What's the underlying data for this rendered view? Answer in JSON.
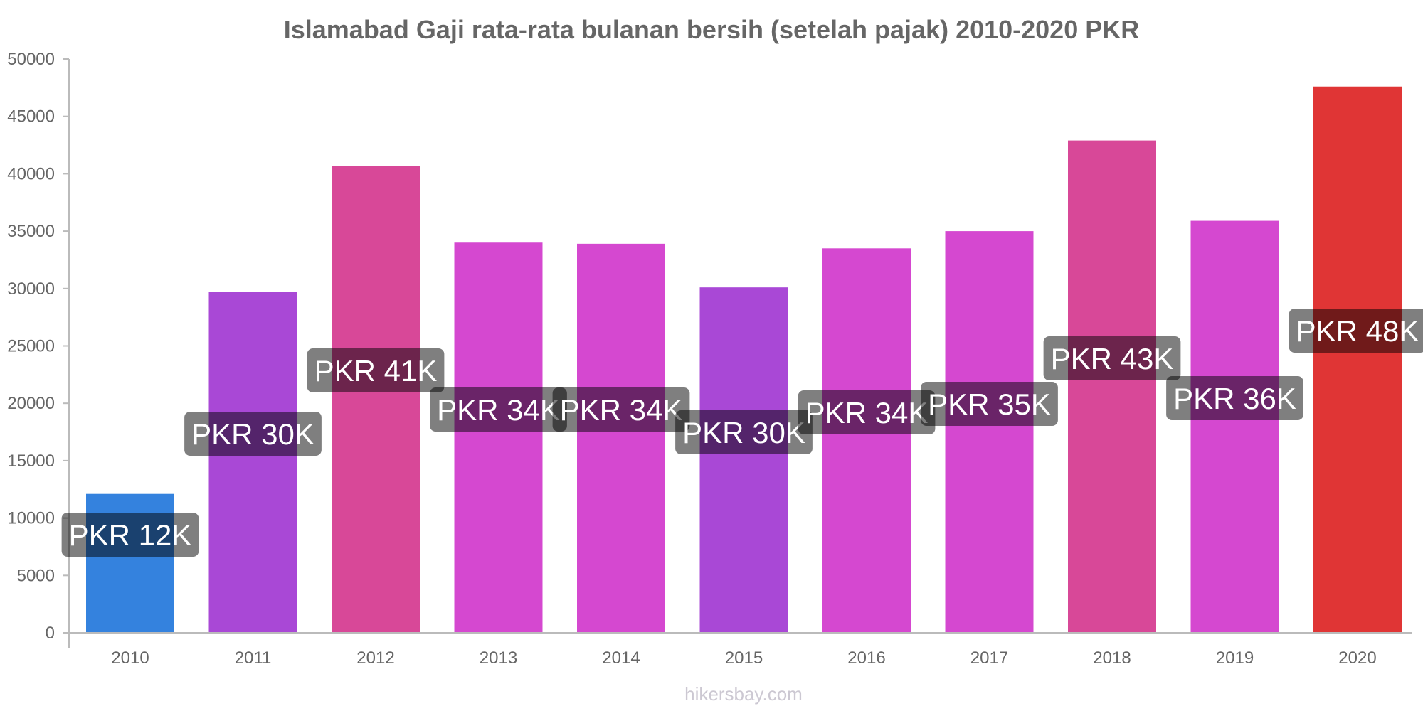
{
  "chart_data": {
    "type": "bar",
    "title": "Islamabad Gaji rata-rata bulanan bersih (setelah pajak) 2010-2020 PKR",
    "xlabel": "",
    "ylabel": "",
    "ylim": [
      0,
      50000
    ],
    "yticks": [
      0,
      5000,
      10000,
      15000,
      20000,
      25000,
      30000,
      35000,
      40000,
      45000,
      50000
    ],
    "categories": [
      "2010",
      "2011",
      "2012",
      "2013",
      "2014",
      "2015",
      "2016",
      "2017",
      "2018",
      "2019",
      "2020"
    ],
    "values": [
      12100,
      29700,
      40700,
      34000,
      33900,
      30100,
      33500,
      35000,
      42900,
      35900,
      47600
    ],
    "data_labels": [
      "PKR 12K",
      "PKR 30K",
      "PKR 41K",
      "PKR 34K",
      "PKR 34K",
      "PKR 30K",
      "PKR 34K",
      "PKR 35K",
      "PKR 43K",
      "PKR 36K",
      "PKR 48K"
    ],
    "colors": [
      "#3482de",
      "#a948d6",
      "#d84898",
      "#d548d0",
      "#d548d0",
      "#a948d6",
      "#d548d0",
      "#d548d0",
      "#d84898",
      "#d548d0",
      "#e03535"
    ],
    "grid": false,
    "legend": "none"
  },
  "watermark": "hikersbay.com"
}
